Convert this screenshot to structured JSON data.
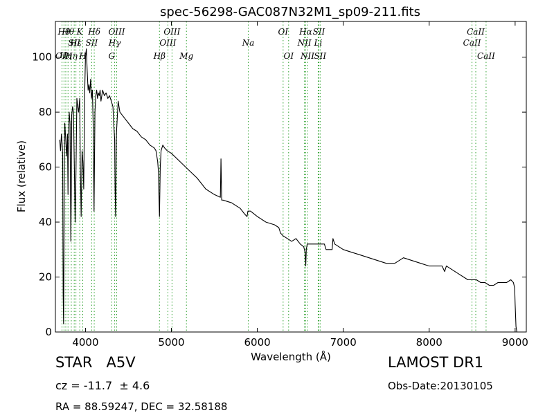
{
  "chart_data": {
    "type": "line",
    "title": "spec-56298-GAC087N32M1_sp09-211.fits",
    "xlabel": "Wavelength (Å)",
    "ylabel": "Flux (relative)",
    "xlim": [
      3650,
      9130
    ],
    "ylim": [
      0,
      113
    ],
    "xticks": [
      4000,
      5000,
      6000,
      7000,
      8000,
      9000
    ],
    "yticks": [
      0,
      20,
      40,
      60,
      80,
      100
    ],
    "grid": false,
    "line_color": "#000000",
    "marker_color": "#2ca02c",
    "series": [
      {
        "x": [
          3700,
          3710,
          3720,
          3730,
          3735,
          3740,
          3745,
          3750,
          3755,
          3760,
          3770,
          3780,
          3790,
          3797,
          3800,
          3810,
          3820,
          3830,
          3835,
          3840,
          3850,
          3860,
          3870,
          3880,
          3889,
          3900,
          3910,
          3920,
          3933,
          3940,
          3950,
          3960,
          3970,
          3980,
          3990,
          4000,
          4010,
          4020,
          4030,
          4040,
          4050,
          4060,
          4070,
          4080,
          4090,
          4100,
          4110,
          4120,
          4130,
          4140,
          4150,
          4160,
          4170,
          4180,
          4190,
          4200,
          4220,
          4240,
          4260,
          4280,
          4300,
          4320,
          4330,
          4340,
          4345,
          4350,
          4360,
          4380,
          4400,
          4450,
          4500,
          4550,
          4600,
          4650,
          4700,
          4750,
          4800,
          4820,
          4840,
          4850,
          4855,
          4861,
          4866,
          4870,
          4880,
          4900,
          4920,
          4950,
          5000,
          5100,
          5200,
          5300,
          5400,
          5500,
          5570,
          5577,
          5585,
          5600,
          5700,
          5800,
          5850,
          5880,
          5890,
          5900,
          5920,
          6000,
          6100,
          6200,
          6250,
          6270,
          6300,
          6350,
          6400,
          6450,
          6500,
          6540,
          6555,
          6563,
          6570,
          6580,
          6620,
          6700,
          6780,
          6800,
          6850,
          6870,
          6880,
          6900,
          7000,
          7100,
          7200,
          7300,
          7400,
          7500,
          7600,
          7650,
          7700,
          7800,
          7900,
          8000,
          8150,
          8180,
          8200,
          8300,
          8350,
          8400,
          8450,
          8500,
          8550,
          8600,
          8650,
          8700,
          8750,
          8800,
          8850,
          8900,
          8950,
          8980,
          8995,
          9000,
          9010,
          9020
        ],
        "y": [
          70,
          66,
          72,
          68,
          64,
          14,
          3,
          30,
          66,
          76,
          70,
          64,
          72,
          50,
          66,
          80,
          76,
          33,
          52,
          79,
          82,
          80,
          61,
          40,
          58,
          85,
          82,
          80,
          85,
          60,
          42,
          66,
          62,
          52,
          86,
          100,
          103,
          95,
          88,
          90,
          87,
          92,
          85,
          88,
          75,
          44,
          80,
          86,
          88,
          85,
          87,
          86,
          88,
          84,
          86,
          88,
          86,
          87,
          85,
          86,
          84,
          82,
          75,
          70,
          52,
          42,
          72,
          84,
          80,
          78,
          76,
          74,
          73,
          71,
          70,
          68,
          67,
          66,
          62,
          58,
          50,
          42,
          52,
          60,
          66,
          68,
          67,
          66,
          65,
          62,
          59,
          56,
          52,
          50,
          49,
          63,
          48,
          48,
          47,
          45,
          43,
          42,
          44,
          44,
          44,
          42,
          40,
          39,
          38,
          36,
          35,
          34,
          33,
          34,
          32,
          31,
          29,
          24,
          30,
          32,
          32,
          32,
          32,
          30,
          30,
          30,
          34,
          32,
          30,
          29,
          28,
          27,
          26,
          25,
          25,
          26,
          27,
          26,
          25,
          24,
          24,
          22,
          24,
          22,
          21,
          20,
          19,
          19,
          19,
          18,
          18,
          17,
          17,
          18,
          18,
          18,
          19,
          18,
          16,
          10,
          2,
          0
        ]
      }
    ],
    "line_markers": [
      {
        "x": 3727,
        "label": "OII",
        "row": 3
      },
      {
        "x": 3750,
        "label": "Hθ",
        "row": 1
      },
      {
        "x": 3771,
        "label": "Hη",
        "row": 3.6
      },
      {
        "x": 3797,
        "label": "Hθ",
        "row": 1
      },
      {
        "x": 3835,
        "label": "Hη",
        "row": 3
      },
      {
        "x": 3869,
        "label": "SII",
        "row": 2
      },
      {
        "x": 3889,
        "label": "Hε",
        "row": 2
      },
      {
        "x": 3933,
        "label": "K",
        "row": 1
      },
      {
        "x": 3968,
        "label": "H",
        "row": 3
      },
      {
        "x": 4072,
        "label": "SII",
        "row": 2
      },
      {
        "x": 4102,
        "label": "Hδ",
        "row": 1
      },
      {
        "x": 4305,
        "label": "G",
        "row": 3
      },
      {
        "x": 4340,
        "label": "Hγ",
        "row": 2
      },
      {
        "x": 4363,
        "label": "OIII",
        "row": 1
      },
      {
        "x": 4861,
        "label": "Hβ",
        "row": 3
      },
      {
        "x": 4959,
        "label": "OIII",
        "row": 2
      },
      {
        "x": 5007,
        "label": "OIII",
        "row": 1
      },
      {
        "x": 5175,
        "label": "Mg",
        "row": 3
      },
      {
        "x": 5894,
        "label": "Na",
        "row": 2
      },
      {
        "x": 6300,
        "label": "OI",
        "row": 1
      },
      {
        "x": 6364,
        "label": "OI",
        "row": 3
      },
      {
        "x": 6548,
        "label": "NII",
        "row": 2
      },
      {
        "x": 6563,
        "label": "Hα",
        "row": 1
      },
      {
        "x": 6583,
        "label": "NII",
        "row": 3
      },
      {
        "x": 6708,
        "label": "Li",
        "row": 2
      },
      {
        "x": 6716,
        "label": "SII",
        "row": 1
      },
      {
        "x": 6731,
        "label": "SII",
        "row": 3
      },
      {
        "x": 8498,
        "label": "CaII",
        "row": 2
      },
      {
        "x": 8542,
        "label": "CaII",
        "row": 1
      },
      {
        "x": 8662,
        "label": "CaII",
        "row": 3
      }
    ]
  },
  "info": {
    "class_label": "STAR   A5V",
    "release": "LAMOST DR1",
    "cz": "cz = -11.7  ± 4.6",
    "obs_date": "Obs-Date:20130105",
    "coords": "RA = 88.59247, DEC = 32.58188"
  }
}
